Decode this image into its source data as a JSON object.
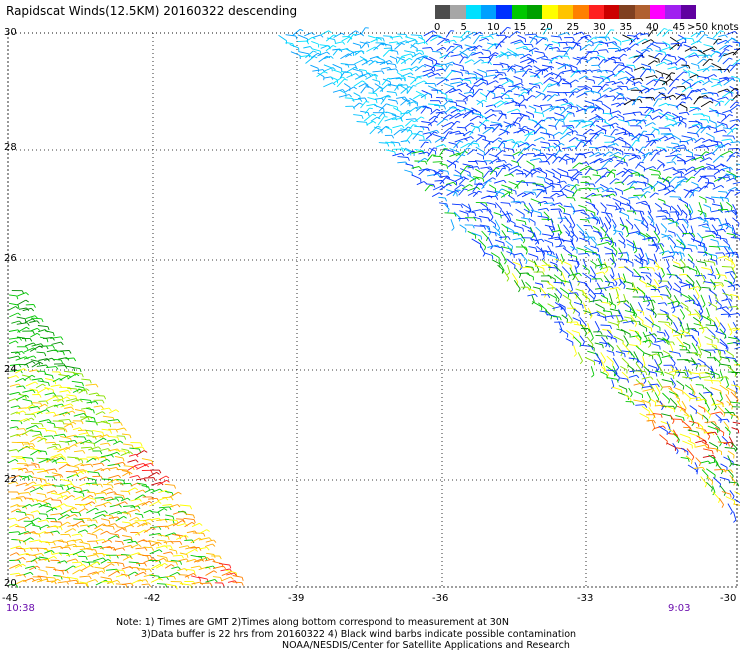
{
  "title": "Rapidscat Winds(12.5KM) 20160322 descending",
  "legend": {
    "colors": [
      "#4d4d4d",
      "#a6a6a6",
      "#00e0ff",
      "#00a0ff",
      "#0030ff",
      "#00c800",
      "#00a000",
      "#ffff00",
      "#ffc400",
      "#ff8000",
      "#ff2020",
      "#cc0000",
      "#804020",
      "#b06030",
      "#ff00ff",
      "#a020f0",
      "#6000a0"
    ],
    "labels": [
      "0",
      "5",
      "10",
      "15",
      "20",
      "25",
      "30",
      "35",
      "40",
      "45"
    ],
    "unit": ">50 knots"
  },
  "axes": {
    "x_ticks": [
      "-45",
      "-42",
      "-39",
      "-36",
      "-33",
      "-30"
    ],
    "y_ticks": [
      "30",
      "28",
      "26",
      "24",
      "22",
      "20"
    ]
  },
  "times": {
    "left": "10:38",
    "right": "9:03"
  },
  "notes": [
    "Note: 1) Times are GMT 2)Times along bottom correspond to measurement at 30N",
    "3)Data buffer is 22 hrs from 20160322 4) Black wind barbs indicate possible contamination",
    "NOAA/NESDIS/Center for Satellite Applications and Research"
  ]
}
